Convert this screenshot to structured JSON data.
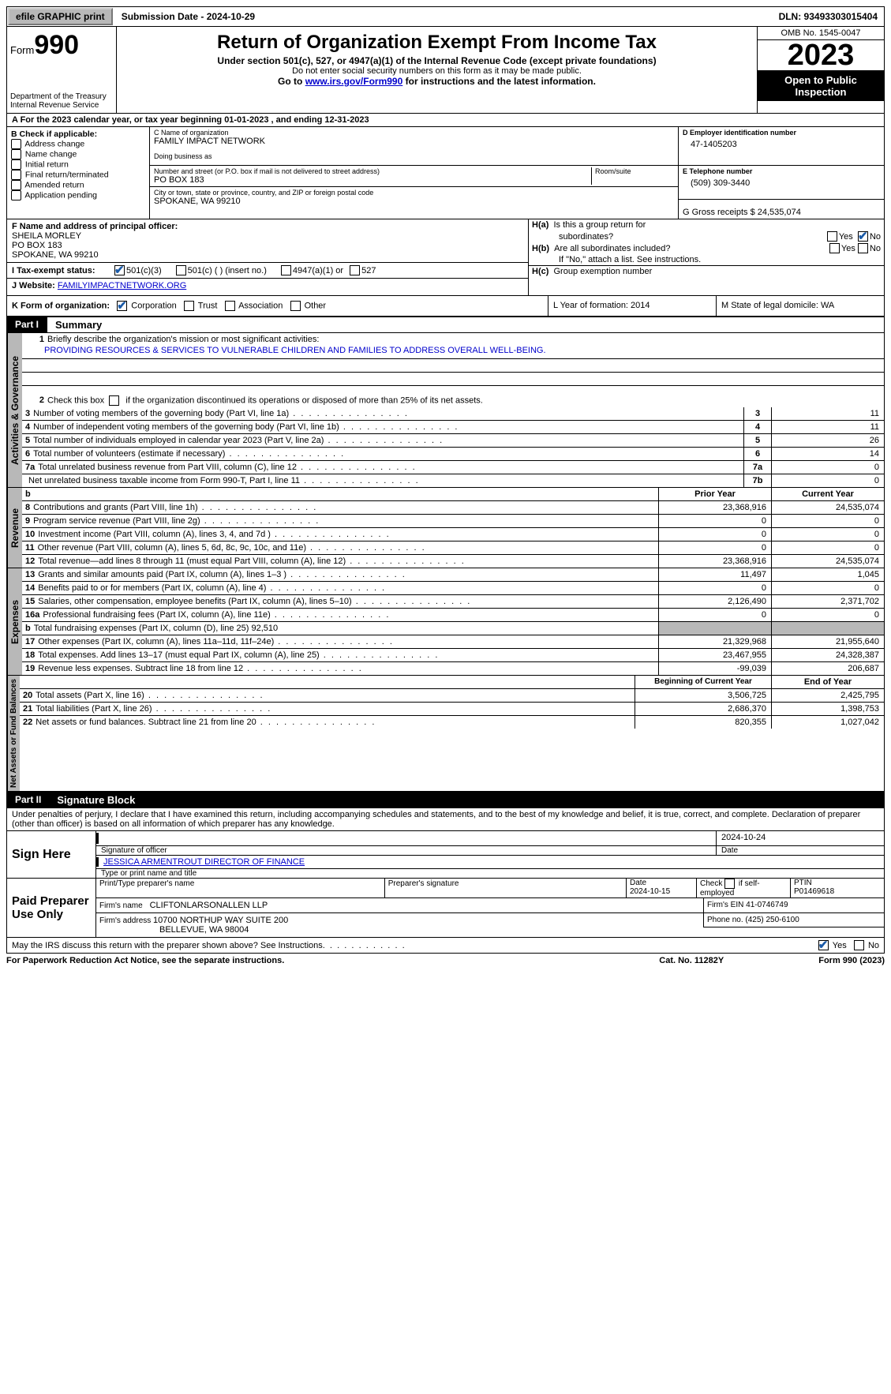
{
  "topbar": {
    "efile": "efile GRAPHIC print",
    "submission_label": "Submission Date - 2024-10-29",
    "dln_label": "DLN: 93493303015404"
  },
  "header": {
    "form_prefix": "Form",
    "form_num": "990",
    "dept": "Department of the Treasury Internal Revenue Service",
    "title": "Return of Organization Exempt From Income Tax",
    "sub1": "Under section 501(c), 527, or 4947(a)(1) of the Internal Revenue Code (except private foundations)",
    "sub2": "Do not enter social security numbers on this form as it may be made public.",
    "sub3_prefix": "Go to ",
    "sub3_link": "www.irs.gov/Form990",
    "sub3_suffix": " for instructions and the latest information.",
    "omb": "OMB No. 1545-0047",
    "year": "2023",
    "open": "Open to Public Inspection"
  },
  "line_a": "A  For the 2023 calendar year, or tax year beginning 01-01-2023    , and ending 12-31-2023",
  "box_b": {
    "title": "B Check if applicable:",
    "opts": [
      "Address change",
      "Name change",
      "Initial return",
      "Final return/terminated",
      "Amended return",
      "Application pending"
    ]
  },
  "box_c": {
    "name_label": "C Name of organization",
    "name": "FAMILY IMPACT NETWORK",
    "dba_label": "Doing business as",
    "dba": "",
    "addr_label": "Number and street (or P.O. box if mail is not delivered to street address)",
    "room_label": "Room/suite",
    "addr": "PO BOX 183",
    "city_label": "City or town, state or province, country, and ZIP or foreign postal code",
    "city": "SPOKANE, WA  99210"
  },
  "box_d": {
    "label": "D Employer identification number",
    "val": "47-1405203"
  },
  "box_e": {
    "label": "E Telephone number",
    "val": "(509) 309-3440"
  },
  "box_g": {
    "label": "G Gross receipts $ 24,535,074"
  },
  "box_f": {
    "label": "F  Name and address of principal officer:",
    "l1": "SHEILA MORLEY",
    "l2": "PO BOX 183",
    "l3": "SPOKANE, WA  99210"
  },
  "box_h": {
    "ha": "H(a)  Is this a group return for subordinates?",
    "hb": "H(b)  Are all subordinates included?",
    "hb_note": "If \"No,\" attach a list. See instructions.",
    "hc": "H(c)  Group exemption number  "
  },
  "box_i": {
    "label": "I    Tax-exempt status:",
    "o1": "501(c)(3)",
    "o2": "501(c) (  ) (insert no.)",
    "o3": "4947(a)(1) or",
    "o4": "527"
  },
  "box_j": {
    "label": "J    Website: ",
    "val": "FAMILYIMPACTNETWORK.ORG"
  },
  "box_k": {
    "label": "K Form of organization:",
    "o1": "Corporation",
    "o2": "Trust",
    "o3": "Association",
    "o4": "Other"
  },
  "box_l": {
    "label": "L Year of formation: 2014"
  },
  "box_m": {
    "label": "M State of legal domicile: WA"
  },
  "part1": {
    "num": "Part I",
    "title": "Summary"
  },
  "part2": {
    "num": "Part II",
    "title": "Signature Block"
  },
  "mission": {
    "q": "1   Briefly describe the organization's mission or most significant activities:",
    "a": "PROVIDING RESOURCES & SERVICES TO VULNERABLE CHILDREN AND FAMILIES TO ADDRESS OVERALL WELL-BEING."
  },
  "line2": "Check this box        if the organization discontinued its operations or disposed of more than 25% of its net assets.",
  "gov_lines": [
    {
      "n": "3",
      "d": "Number of voting members of the governing body (Part VI, line 1a)",
      "b": "3",
      "v": "11"
    },
    {
      "n": "4",
      "d": "Number of independent voting members of the governing body (Part VI, line 1b)",
      "b": "4",
      "v": "11"
    },
    {
      "n": "5",
      "d": "Total number of individuals employed in calendar year 2023 (Part V, line 2a)",
      "b": "5",
      "v": "26"
    },
    {
      "n": "6",
      "d": "Total number of volunteers (estimate if necessary)",
      "b": "6",
      "v": "14"
    },
    {
      "n": "7a",
      "d": "Total unrelated business revenue from Part VIII, column (C), line 12",
      "b": "7a",
      "v": "0"
    },
    {
      "n": "",
      "d": "Net unrelated business taxable income from Form 990-T, Part I, line 11",
      "b": "7b",
      "v": "0"
    }
  ],
  "rev_hdr": {
    "b": "b",
    "py": "Prior Year",
    "cy": "Current Year"
  },
  "rev_lines": [
    {
      "n": "8",
      "d": "Contributions and grants (Part VIII, line 1h)",
      "py": "23,368,916",
      "cy": "24,535,074"
    },
    {
      "n": "9",
      "d": "Program service revenue (Part VIII, line 2g)",
      "py": "0",
      "cy": "0"
    },
    {
      "n": "10",
      "d": "Investment income (Part VIII, column (A), lines 3, 4, and 7d )",
      "py": "0",
      "cy": "0"
    },
    {
      "n": "11",
      "d": "Other revenue (Part VIII, column (A), lines 5, 6d, 8c, 9c, 10c, and 11e)",
      "py": "0",
      "cy": "0"
    },
    {
      "n": "12",
      "d": "Total revenue—add lines 8 through 11 (must equal Part VIII, column (A), line 12)",
      "py": "23,368,916",
      "cy": "24,535,074"
    }
  ],
  "exp_lines": [
    {
      "n": "13",
      "d": "Grants and similar amounts paid (Part IX, column (A), lines 1–3 )",
      "py": "11,497",
      "cy": "1,045"
    },
    {
      "n": "14",
      "d": "Benefits paid to or for members (Part IX, column (A), line 4)",
      "py": "0",
      "cy": "0"
    },
    {
      "n": "15",
      "d": "Salaries, other compensation, employee benefits (Part IX, column (A), lines 5–10)",
      "py": "2,126,490",
      "cy": "2,371,702"
    },
    {
      "n": "16a",
      "d": "Professional fundraising fees (Part IX, column (A), line 11e)",
      "py": "0",
      "cy": "0"
    },
    {
      "n": "b",
      "d": "Total fundraising expenses (Part IX, column (D), line 25) 92,510",
      "py": "SHADE",
      "cy": "SHADE"
    },
    {
      "n": "17",
      "d": "Other expenses (Part IX, column (A), lines 11a–11d, 11f–24e)",
      "py": "21,329,968",
      "cy": "21,955,640"
    },
    {
      "n": "18",
      "d": "Total expenses. Add lines 13–17 (must equal Part IX, column (A), line 25)",
      "py": "23,467,955",
      "cy": "24,328,387"
    },
    {
      "n": "19",
      "d": "Revenue less expenses. Subtract line 18 from line 12",
      "py": "-99,039",
      "cy": "206,687"
    }
  ],
  "na_hdr": {
    "py": "Beginning of Current Year",
    "cy": "End of Year"
  },
  "na_lines": [
    {
      "n": "20",
      "d": "Total assets (Part X, line 16)",
      "py": "3,506,725",
      "cy": "2,425,795"
    },
    {
      "n": "21",
      "d": "Total liabilities (Part X, line 26)",
      "py": "2,686,370",
      "cy": "1,398,753"
    },
    {
      "n": "22",
      "d": "Net assets or fund balances. Subtract line 21 from line 20",
      "py": "820,355",
      "cy": "1,027,042"
    }
  ],
  "tabs": {
    "ag": "Activities & Governance",
    "rev": "Revenue",
    "exp": "Expenses",
    "na": "Net Assets or Fund Balances"
  },
  "penalties": "Under penalties of perjury, I declare that I have examined this return, including accompanying schedules and statements, and to the best of my knowledge and belief, it is true, correct, and complete. Declaration of preparer (other than officer) is based on all information of which preparer has any knowledge.",
  "sign": {
    "here": "Sign Here",
    "sig_label": "Signature of officer",
    "date_label": "Date",
    "date": "2024-10-24",
    "name": "JESSICA ARMENTROUT  DIRECTOR OF FINANCE",
    "name_label": "Type or print name and title"
  },
  "paid": {
    "label": "Paid Preparer Use Only",
    "h1": "Print/Type preparer's name",
    "h2": "Preparer's signature",
    "h3_label": "Date",
    "h3": "2024-10-15",
    "h4": "Check         if self-employed",
    "h5_label": "PTIN",
    "h5": "P01469618",
    "firm_label": "Firm's name    ",
    "firm": "CLIFTONLARSONALLEN LLP",
    "ein_label": "Firm's EIN  41-0746749",
    "addr_label": "Firm's address ",
    "addr1": "10700 NORTHUP WAY SUITE 200",
    "addr2": "BELLEVUE, WA  98004",
    "phone": "Phone no. (425) 250-6100"
  },
  "may_irs": "May the IRS discuss this return with the preparer shown above? See Instructions.",
  "footer": {
    "l": "For Paperwork Reduction Act Notice, see the separate instructions.",
    "m": "Cat. No. 11282Y",
    "r": "Form 990 (2023)"
  },
  "yes": "Yes",
  "no": "No"
}
